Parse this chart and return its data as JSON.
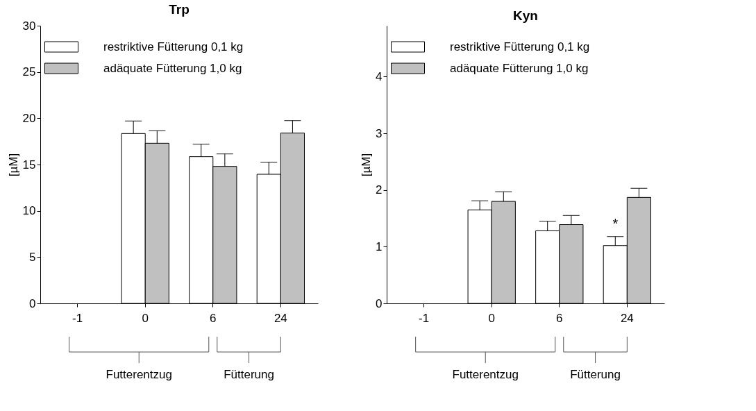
{
  "chart_data": [
    {
      "type": "bar",
      "title": "Trp",
      "ylabel": "[µM]",
      "categories": [
        "-1",
        "0",
        "6",
        "24"
      ],
      "ylim": [
        0,
        30
      ],
      "yticks": [
        0,
        5,
        10,
        15,
        20,
        25,
        30
      ],
      "grid": false,
      "legend": "top left",
      "series": [
        {
          "name": "restriktive Fütterung 0,1 kg",
          "color": "#ffffff",
          "values": [
            null,
            18.35,
            15.85,
            13.95
          ],
          "errors": [
            null,
            [
              18.35,
              19.7
            ],
            [
              15.85,
              17.2
            ],
            [
              13.95,
              15.25
            ]
          ]
        },
        {
          "name": "adäquate Fütterung 1,0 kg",
          "color": "#c0c0c0",
          "values": [
            null,
            17.3,
            14.8,
            18.4
          ],
          "errors": [
            null,
            [
              17.3,
              18.65
            ],
            [
              14.8,
              16.15
            ],
            [
              18.4,
              19.75
            ]
          ]
        }
      ],
      "annotations": [
        "Futterentzug",
        "Fütterung"
      ]
    },
    {
      "type": "bar",
      "title": "Kyn",
      "ylabel": "[µM]",
      "categories": [
        "-1",
        "0",
        "6",
        "24"
      ],
      "ylim": [
        0,
        4.9
      ],
      "yticks": [
        0,
        1,
        2,
        3,
        4
      ],
      "grid": false,
      "legend": "top left",
      "series": [
        {
          "name": "restriktive Fütterung 0,1 kg",
          "color": "#ffffff",
          "values": [
            null,
            1.65,
            1.28,
            1.02
          ],
          "errors": [
            null,
            [
              1.65,
              1.81
            ],
            [
              1.28,
              1.45
            ],
            [
              1.02,
              1.18
            ]
          ]
        },
        {
          "name": "adäquate Fütterung 1,0 kg",
          "color": "#c0c0c0",
          "values": [
            null,
            1.8,
            1.39,
            1.87
          ],
          "errors": [
            null,
            [
              1.8,
              1.97
            ],
            [
              1.39,
              1.55
            ],
            [
              1.87,
              2.03
            ]
          ]
        }
      ],
      "annotations": [
        "Futterentzug",
        "Fütterung",
        {
          "text": "*",
          "x": "24",
          "y": 1.4
        }
      ]
    }
  ]
}
